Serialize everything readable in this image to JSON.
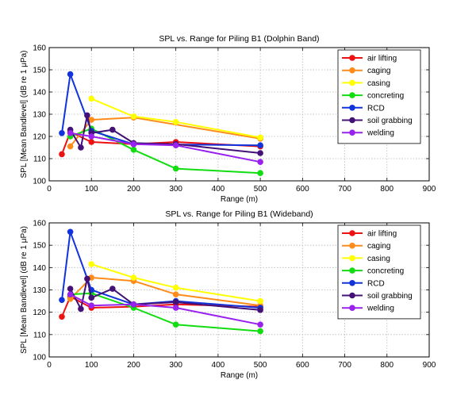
{
  "chart_data": [
    {
      "type": "line",
      "title": "SPL vs. Range for Piling B1 (Dolphin Band)",
      "xlabel": "Range (m)",
      "ylabel": "SPL [Mean Bandlevel] (dB re 1 μPa)",
      "xlim": [
        0,
        900
      ],
      "ylim": [
        100,
        160
      ],
      "xticks": [
        0,
        100,
        200,
        300,
        400,
        500,
        600,
        700,
        800,
        900
      ],
      "yticks": [
        100,
        110,
        120,
        130,
        140,
        150,
        160
      ],
      "grid": true,
      "legend_position": "top-right",
      "series": [
        {
          "name": "air lifting",
          "color": "#ee1111",
          "x": [
            30,
            50,
            100,
            200,
            300,
            500
          ],
          "y": [
            112,
            122,
            117.5,
            116.5,
            117.5,
            115.5
          ]
        },
        {
          "name": "caging",
          "color": "#ff8c1a",
          "x": [
            50,
            100,
            200,
            500
          ],
          "y": [
            115.5,
            127.5,
            128.5,
            119
          ]
        },
        {
          "name": "casing",
          "color": "#ffff00",
          "x": [
            100,
            200,
            300,
            500
          ],
          "y": [
            137,
            129,
            126.5,
            119.5
          ]
        },
        {
          "name": "concreting",
          "color": "#11dd11",
          "x": [
            50,
            100,
            200,
            300,
            500
          ],
          "y": [
            120,
            123.5,
            114,
            105.5,
            103.5
          ]
        },
        {
          "name": "RCD",
          "color": "#1133dd",
          "x": [
            30,
            50,
            100,
            200,
            500
          ],
          "y": [
            121.5,
            148,
            122.5,
            116.5,
            116
          ]
        },
        {
          "name": "soil grabbing",
          "color": "#441177",
          "x": [
            50,
            75,
            90,
            100,
            150,
            200,
            300,
            500
          ],
          "y": [
            123,
            115,
            129.5,
            121.5,
            123,
            117,
            116.5,
            112.5
          ]
        },
        {
          "name": "welding",
          "color": "#9922ee",
          "x": [
            50,
            100,
            200,
            300,
            500
          ],
          "y": [
            121.5,
            120,
            116.5,
            116,
            108.5
          ]
        }
      ]
    },
    {
      "type": "line",
      "title": "SPL vs. Range for Piling B1 (Wideband)",
      "xlabel": "Range (m)",
      "ylabel": "SPL [Mean Bandlevel] (dB re 1 μPa)",
      "xlim": [
        0,
        900
      ],
      "ylim": [
        100,
        160
      ],
      "xticks": [
        0,
        100,
        200,
        300,
        400,
        500,
        600,
        700,
        800,
        900
      ],
      "yticks": [
        100,
        110,
        120,
        130,
        140,
        150,
        160
      ],
      "grid": true,
      "legend_position": "top-right",
      "series": [
        {
          "name": "air lifting",
          "color": "#ee1111",
          "x": [
            30,
            50,
            100,
            200,
            300,
            500
          ],
          "y": [
            118,
            127,
            122,
            122.5,
            123.5,
            122.5
          ]
        },
        {
          "name": "caging",
          "color": "#ff8c1a",
          "x": [
            50,
            100,
            200,
            300,
            500
          ],
          "y": [
            126,
            135.5,
            134,
            128,
            123
          ]
        },
        {
          "name": "casing",
          "color": "#ffff00",
          "x": [
            100,
            200,
            300,
            500
          ],
          "y": [
            141.5,
            135.5,
            131,
            125
          ]
        },
        {
          "name": "concreting",
          "color": "#11dd11",
          "x": [
            50,
            100,
            200,
            300,
            500
          ],
          "y": [
            128,
            128.5,
            122,
            114.5,
            111.5
          ]
        },
        {
          "name": "RCD",
          "color": "#1133dd",
          "x": [
            30,
            50,
            100,
            200,
            300,
            500
          ],
          "y": [
            125.5,
            156,
            130,
            123.5,
            125,
            122
          ]
        },
        {
          "name": "soil grabbing",
          "color": "#441177",
          "x": [
            50,
            75,
            90,
            100,
            150,
            200,
            300,
            500
          ],
          "y": [
            130.5,
            121.5,
            135,
            126.5,
            130.5,
            123.5,
            124.5,
            121
          ]
        },
        {
          "name": "welding",
          "color": "#9922ee",
          "x": [
            50,
            100,
            200,
            300,
            500
          ],
          "y": [
            128,
            123,
            123.5,
            122,
            114.5
          ]
        }
      ]
    }
  ]
}
